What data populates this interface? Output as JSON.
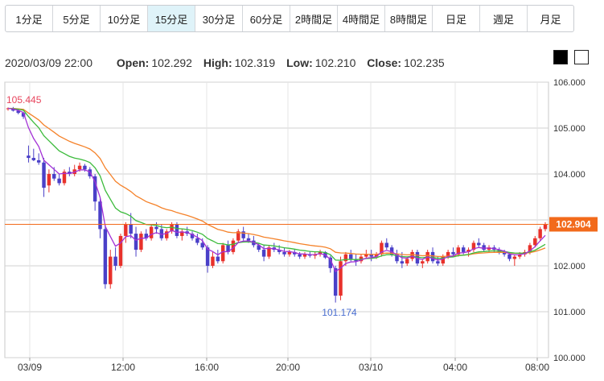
{
  "timeframes": [
    {
      "label": "1分足",
      "active": false
    },
    {
      "label": "5分足",
      "active": false
    },
    {
      "label": "10分足",
      "active": false
    },
    {
      "label": "15分足",
      "active": true
    },
    {
      "label": "30分足",
      "active": false
    },
    {
      "label": "60分足",
      "active": false
    },
    {
      "label": "2時間足",
      "active": false
    },
    {
      "label": "4時間足",
      "active": false
    },
    {
      "label": "8時間足",
      "active": false
    },
    {
      "label": "日足",
      "active": false
    },
    {
      "label": "週足",
      "active": false
    },
    {
      "label": "月足",
      "active": false
    }
  ],
  "ohlc": {
    "datetime": "2020/03/09 22:00",
    "open_label": "Open:",
    "open": "102.292",
    "high_label": "High:",
    "high": "102.319",
    "low_label": "Low:",
    "low": "102.210",
    "close_label": "Close:",
    "close": "102.235"
  },
  "theme_buttons": [
    "black",
    "white"
  ],
  "colors": {
    "up": "#e8312b",
    "down": "#4a40c8",
    "ma_fast": "#a331d6",
    "ma_mid": "#3cbb3c",
    "ma_slow": "#f5822a",
    "price_tag": "#f26a1b",
    "high_label": "#e8455d",
    "low_label": "#4a6ed0",
    "grid": "#d0d0d0",
    "active_tab": "#dff3f9"
  },
  "chart_data": {
    "type": "candlestick",
    "ylim": [
      100.0,
      106.0
    ],
    "y_ticks": [
      "106.000",
      "105.000",
      "104.000",
      "103.000",
      "102.000",
      "101.000",
      "100.000"
    ],
    "x_ticks": [
      "03/09",
      "12:00",
      "16:00",
      "20:00",
      "03/10",
      "04:00",
      "08:00"
    ],
    "current_price": "102.904",
    "high_marker": "105.445",
    "low_marker": "101.174",
    "candles": [
      [
        105.42,
        105.45,
        105.38,
        105.43
      ],
      [
        105.43,
        105.46,
        105.36,
        105.38
      ],
      [
        105.38,
        105.42,
        105.3,
        105.33
      ],
      [
        105.33,
        105.35,
        105.2,
        105.25
      ],
      [
        104.4,
        104.62,
        104.25,
        104.35
      ],
      [
        104.35,
        104.55,
        104.28,
        104.3
      ],
      [
        104.3,
        104.45,
        104.2,
        104.25
      ],
      [
        104.25,
        104.35,
        103.5,
        103.7
      ],
      [
        103.75,
        104.1,
        103.6,
        104.0
      ],
      [
        104.0,
        104.15,
        103.85,
        103.9
      ],
      [
        103.9,
        104.0,
        103.75,
        103.8
      ],
      [
        103.8,
        104.1,
        103.75,
        104.05
      ],
      [
        104.05,
        104.15,
        103.95,
        104.0
      ],
      [
        104.0,
        104.2,
        103.95,
        104.1
      ],
      [
        104.1,
        104.25,
        104.05,
        104.18
      ],
      [
        104.18,
        104.22,
        104.05,
        104.1
      ],
      [
        104.1,
        104.15,
        103.9,
        103.95
      ],
      [
        103.95,
        104.0,
        103.2,
        103.4
      ],
      [
        103.4,
        103.5,
        102.6,
        102.8
      ],
      [
        102.8,
        102.9,
        101.5,
        101.6
      ],
      [
        101.6,
        102.35,
        101.5,
        102.2
      ],
      [
        102.2,
        102.4,
        101.9,
        102.0
      ],
      [
        102.0,
        102.7,
        101.95,
        102.65
      ],
      [
        102.65,
        102.95,
        102.5,
        102.9
      ],
      [
        102.9,
        103.15,
        102.6,
        102.7
      ],
      [
        102.7,
        102.85,
        102.2,
        102.35
      ],
      [
        102.35,
        102.75,
        102.3,
        102.7
      ],
      [
        102.7,
        102.8,
        102.55,
        102.6
      ],
      [
        102.6,
        102.9,
        102.55,
        102.85
      ],
      [
        102.85,
        102.95,
        102.7,
        102.8
      ],
      [
        102.8,
        102.9,
        102.55,
        102.6
      ],
      [
        102.6,
        102.8,
        102.55,
        102.75
      ],
      [
        102.75,
        102.95,
        102.7,
        102.9
      ],
      [
        102.9,
        102.95,
        102.6,
        102.65
      ],
      [
        102.65,
        102.8,
        102.55,
        102.75
      ],
      [
        102.75,
        102.85,
        102.65,
        102.7
      ],
      [
        102.7,
        102.75,
        102.55,
        102.6
      ],
      [
        102.6,
        102.7,
        102.45,
        102.5
      ],
      [
        102.5,
        102.6,
        102.35,
        102.4
      ],
      [
        102.4,
        102.45,
        101.85,
        102.0
      ],
      [
        102.0,
        102.3,
        101.95,
        102.2
      ],
      [
        102.2,
        102.35,
        102.05,
        102.1
      ],
      [
        102.1,
        102.5,
        102.05,
        102.45
      ],
      [
        102.45,
        102.55,
        102.25,
        102.3
      ],
      [
        102.3,
        102.6,
        102.25,
        102.55
      ],
      [
        102.55,
        102.8,
        102.5,
        102.75
      ],
      [
        102.75,
        102.85,
        102.55,
        102.6
      ],
      [
        102.6,
        102.7,
        102.5,
        102.55
      ],
      [
        102.55,
        102.65,
        102.4,
        102.45
      ],
      [
        102.45,
        102.5,
        102.3,
        102.35
      ],
      [
        102.35,
        102.45,
        102.1,
        102.2
      ],
      [
        102.2,
        102.45,
        102.15,
        102.4
      ],
      [
        102.4,
        102.5,
        102.3,
        102.35
      ],
      [
        102.35,
        102.45,
        102.25,
        102.3
      ],
      [
        102.3,
        102.4,
        102.2,
        102.25
      ],
      [
        102.25,
        102.35,
        102.2,
        102.3
      ],
      [
        102.3,
        102.35,
        102.2,
        102.25
      ],
      [
        102.25,
        102.3,
        102.15,
        102.2
      ],
      [
        102.2,
        102.3,
        102.15,
        102.25
      ],
      [
        102.25,
        102.32,
        102.18,
        102.22
      ],
      [
        102.22,
        102.3,
        102.15,
        102.25
      ],
      [
        102.25,
        102.35,
        102.2,
        102.3
      ],
      [
        102.3,
        102.32,
        102.15,
        102.18
      ],
      [
        102.18,
        102.22,
        101.85,
        101.95
      ],
      [
        101.95,
        102.0,
        101.2,
        101.35
      ],
      [
        101.35,
        102.2,
        101.25,
        102.1
      ],
      [
        102.1,
        102.3,
        102.0,
        102.25
      ],
      [
        102.25,
        102.35,
        102.1,
        102.15
      ],
      [
        102.15,
        102.25,
        102.0,
        102.1
      ],
      [
        102.1,
        102.25,
        102.05,
        102.2
      ],
      [
        102.2,
        102.35,
        102.15,
        102.25
      ],
      [
        102.25,
        102.35,
        102.1,
        102.2
      ],
      [
        102.2,
        102.3,
        102.15,
        102.25
      ],
      [
        102.25,
        102.55,
        102.2,
        102.5
      ],
      [
        102.5,
        102.6,
        102.35,
        102.4
      ],
      [
        102.4,
        102.45,
        102.2,
        102.25
      ],
      [
        102.25,
        102.35,
        102.05,
        102.1
      ],
      [
        102.1,
        102.3,
        101.95,
        102.05
      ],
      [
        102.05,
        102.2,
        102.0,
        102.15
      ],
      [
        102.15,
        102.35,
        102.1,
        102.3
      ],
      [
        102.3,
        102.35,
        102.0,
        102.05
      ],
      [
        102.05,
        102.15,
        101.95,
        102.1
      ],
      [
        102.1,
        102.35,
        102.05,
        102.3
      ],
      [
        102.3,
        102.4,
        102.05,
        102.1
      ],
      [
        102.1,
        102.2,
        102.0,
        102.05
      ],
      [
        102.05,
        102.25,
        102.0,
        102.2
      ],
      [
        102.2,
        102.35,
        102.15,
        102.3
      ],
      [
        102.3,
        102.4,
        102.2,
        102.25
      ],
      [
        102.25,
        102.45,
        102.2,
        102.4
      ],
      [
        102.4,
        102.45,
        102.25,
        102.3
      ],
      [
        102.3,
        102.4,
        102.2,
        102.35
      ],
      [
        102.35,
        102.55,
        102.3,
        102.5
      ],
      [
        102.5,
        102.6,
        102.4,
        102.45
      ],
      [
        102.45,
        102.5,
        102.3,
        102.35
      ],
      [
        102.35,
        102.45,
        102.3,
        102.4
      ],
      [
        102.4,
        102.45,
        102.3,
        102.35
      ],
      [
        102.35,
        102.4,
        102.25,
        102.3
      ],
      [
        102.3,
        102.35,
        102.2,
        102.25
      ],
      [
        102.25,
        102.3,
        102.1,
        102.15
      ],
      [
        102.15,
        102.25,
        102.0,
        102.2
      ],
      [
        102.2,
        102.3,
        102.15,
        102.25
      ],
      [
        102.25,
        102.35,
        102.2,
        102.3
      ],
      [
        102.3,
        102.5,
        102.25,
        102.45
      ],
      [
        102.45,
        102.65,
        102.4,
        102.6
      ],
      [
        102.6,
        102.85,
        102.55,
        102.8
      ],
      [
        102.8,
        102.95,
        102.75,
        102.9
      ]
    ]
  }
}
